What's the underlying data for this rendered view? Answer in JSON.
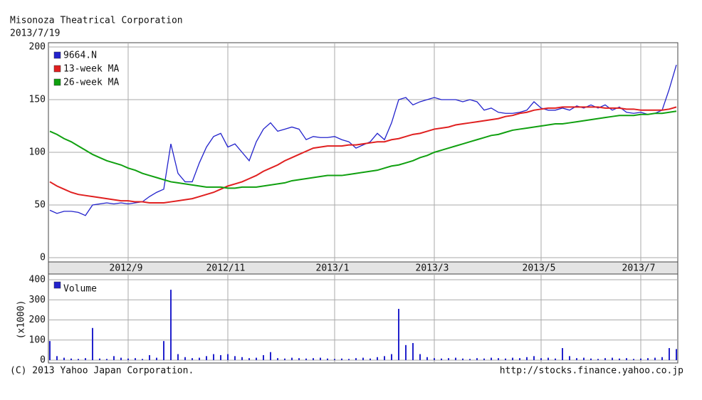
{
  "chart_data": [
    {
      "type": "line",
      "title": "Misonoza Theatrical Corporation",
      "subtitle": "2013/7/19",
      "categories": [
        null,
        null,
        null,
        null,
        null,
        null,
        null,
        null,
        null,
        null,
        null,
        "2012/9",
        null,
        null,
        null,
        null,
        null,
        null,
        null,
        null,
        null,
        null,
        null,
        null,
        null,
        "2012/11",
        null,
        null,
        null,
        null,
        null,
        null,
        null,
        null,
        null,
        null,
        null,
        null,
        null,
        null,
        "2013/1",
        null,
        null,
        null,
        null,
        null,
        null,
        null,
        null,
        null,
        null,
        null,
        null,
        null,
        "2013/3",
        null,
        null,
        null,
        null,
        null,
        null,
        null,
        null,
        null,
        null,
        null,
        null,
        null,
        null,
        "2013/5",
        null,
        null,
        null,
        null,
        null,
        null,
        null,
        null,
        null,
        null,
        null,
        null,
        null,
        "2013/7",
        null,
        null,
        null,
        null,
        null
      ],
      "series": [
        {
          "name": "9664.N",
          "color": "#2222cc",
          "values": [
            45,
            42,
            44,
            44,
            43,
            40,
            50,
            51,
            52,
            51,
            52,
            51,
            52,
            53,
            58,
            62,
            65,
            108,
            80,
            72,
            72,
            90,
            105,
            115,
            118,
            105,
            108,
            100,
            92,
            110,
            122,
            128,
            120,
            122,
            124,
            122,
            112,
            115,
            114,
            114,
            115,
            112,
            110,
            104,
            107,
            110,
            118,
            112,
            128,
            150,
            152,
            145,
            148,
            150,
            152,
            150,
            150,
            150,
            148,
            150,
            148,
            140,
            142,
            138,
            137,
            137,
            138,
            140,
            148,
            142,
            140,
            140,
            142,
            140,
            144,
            142,
            145,
            142,
            145,
            140,
            143,
            138,
            137,
            138,
            136,
            137,
            140,
            160,
            183
          ]
        },
        {
          "name": "13-week MA",
          "color": "#e02020",
          "values": [
            72,
            68,
            65,
            62,
            60,
            59,
            58,
            57,
            56,
            55,
            54,
            54,
            53,
            53,
            52,
            52,
            52,
            53,
            54,
            55,
            56,
            58,
            60,
            62,
            65,
            68,
            70,
            72,
            75,
            78,
            82,
            85,
            88,
            92,
            95,
            98,
            101,
            104,
            105,
            106,
            106,
            106,
            107,
            107,
            108,
            109,
            110,
            110,
            112,
            113,
            115,
            117,
            118,
            120,
            122,
            123,
            124,
            126,
            127,
            128,
            129,
            130,
            131,
            132,
            134,
            135,
            137,
            138,
            140,
            141,
            142,
            142,
            143,
            143,
            143,
            143,
            143,
            143,
            142,
            142,
            142,
            141,
            141,
            140,
            140,
            140,
            140,
            141,
            143
          ]
        },
        {
          "name": "26-week MA",
          "color": "#10a010",
          "values": [
            120,
            117,
            113,
            110,
            106,
            102,
            98,
            95,
            92,
            90,
            88,
            85,
            83,
            80,
            78,
            76,
            74,
            72,
            71,
            70,
            69,
            68,
            67,
            67,
            67,
            66,
            66,
            67,
            67,
            67,
            68,
            69,
            70,
            71,
            73,
            74,
            75,
            76,
            77,
            78,
            78,
            78,
            79,
            80,
            81,
            82,
            83,
            85,
            87,
            88,
            90,
            92,
            95,
            97,
            100,
            102,
            104,
            106,
            108,
            110,
            112,
            114,
            116,
            117,
            119,
            121,
            122,
            123,
            124,
            125,
            126,
            127,
            127,
            128,
            129,
            130,
            131,
            132,
            133,
            134,
            135,
            135,
            135,
            136,
            136,
            137,
            137,
            138,
            139
          ]
        }
      ],
      "ylim": [
        0,
        200
      ],
      "yticks": [
        0,
        50,
        100,
        150,
        200
      ],
      "grid": true
    },
    {
      "type": "bar",
      "ylabel": "(x1000)",
      "series": [
        {
          "name": "Volume",
          "color": "#2222cc",
          "values": [
            95,
            20,
            12,
            8,
            6,
            10,
            160,
            8,
            6,
            20,
            12,
            8,
            10,
            6,
            25,
            12,
            95,
            350,
            30,
            15,
            10,
            12,
            20,
            30,
            25,
            30,
            20,
            15,
            10,
            12,
            25,
            40,
            10,
            8,
            12,
            10,
            8,
            10,
            12,
            8,
            6,
            8,
            6,
            10,
            12,
            8,
            15,
            20,
            30,
            255,
            75,
            85,
            30,
            15,
            10,
            8,
            10,
            12,
            8,
            6,
            10,
            8,
            12,
            10,
            8,
            12,
            10,
            15,
            20,
            10,
            12,
            8,
            60,
            20,
            10,
            12,
            8,
            6,
            10,
            12,
            8,
            10,
            6,
            8,
            10,
            12,
            15,
            60,
            55
          ]
        }
      ],
      "ylim": [
        0,
        400
      ],
      "yticks": [
        0,
        100,
        200,
        300,
        400
      ],
      "grid": true
    }
  ],
  "footer": {
    "left": "(C) 2013 Yahoo Japan Corporation.",
    "right": "http://stocks.finance.yahoo.co.jp"
  }
}
